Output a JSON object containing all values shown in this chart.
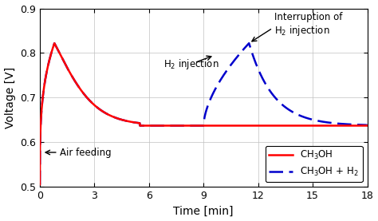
{
  "xlabel": "Time [min]",
  "ylabel": "Voltage [V]",
  "xlim": [
    0,
    18
  ],
  "ylim": [
    0.5,
    0.9
  ],
  "xticks": [
    0,
    3,
    6,
    9,
    12,
    15,
    18
  ],
  "yticks": [
    0.5,
    0.6,
    0.7,
    0.8,
    0.9
  ],
  "red_color": "#FF0000",
  "blue_color": "#0000CC",
  "legend_labels": [
    "CH$_3$OH",
    "CH$_3$OH + H$_2$"
  ],
  "background_color": "#FFFFFF",
  "figsize": [
    4.74,
    2.77
  ],
  "dpi": 100
}
